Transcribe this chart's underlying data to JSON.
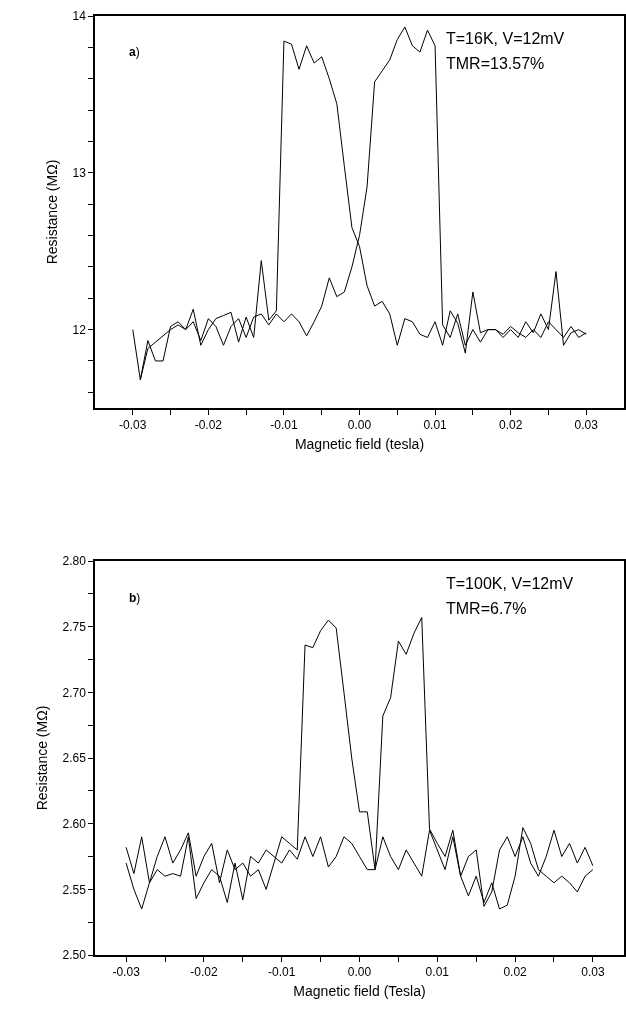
{
  "chart_data": [
    {
      "type": "line",
      "xlabel": "Magnetic field (tesla)",
      "ylabel": "Resistance (MΩ)",
      "annotations": [
        "a)",
        "T=16K, V=12mV",
        "TMR=13.57%"
      ],
      "xlim": [
        -0.035,
        0.035
      ],
      "ylim": [
        11.5,
        14
      ],
      "xticks": [
        -0.03,
        {
          "value": -0.025,
          "label": null
        },
        -0.02,
        {
          "value": -0.015,
          "label": null
        },
        -0.01,
        {
          "value": -0.005,
          "label": null
        },
        {
          "value": 0,
          "label": "0.00"
        },
        {
          "value": 0.005,
          "label": null
        },
        0.01,
        {
          "value": 0.015,
          "label": null
        },
        0.02,
        {
          "value": 0.025,
          "label": null
        },
        0.03
      ],
      "yticks": [
        {
          "value": 11.6,
          "label": null
        },
        {
          "value": 11.8,
          "label": null
        },
        12,
        {
          "value": 12.2,
          "label": null
        },
        {
          "value": 12.4,
          "label": null
        },
        {
          "value": 12.6,
          "label": null
        },
        {
          "value": 12.8,
          "label": null
        },
        13,
        {
          "value": 13.2,
          "label": null
        },
        {
          "value": 13.4,
          "label": null
        },
        {
          "value": 13.6,
          "label": null
        },
        {
          "value": 13.8,
          "label": null
        },
        14
      ],
      "x": [
        -0.03,
        -0.029,
        -0.028,
        -0.027,
        -0.026,
        -0.025,
        -0.024,
        -0.023,
        -0.022,
        -0.021,
        -0.02,
        -0.019,
        -0.018,
        -0.017,
        -0.016,
        -0.015,
        -0.014,
        -0.013,
        -0.012,
        -0.011,
        -0.01,
        -0.009,
        -0.008,
        -0.007,
        -0.006,
        -0.005,
        -0.004,
        -0.003,
        -0.002,
        -0.001,
        0.0,
        0.001,
        0.002,
        0.003,
        0.004,
        0.005,
        0.006,
        0.007,
        0.008,
        0.009,
        0.01,
        0.011,
        0.012,
        0.013,
        0.014,
        0.015,
        0.016,
        0.017,
        0.018,
        0.019,
        0.02,
        0.021,
        0.022,
        0.023,
        0.024,
        0.025,
        0.026,
        0.027,
        0.028,
        0.029,
        0.03
      ],
      "marker": "none",
      "line_style": "solid",
      "series": [
        {
          "color": "#000000",
          "values": [
            12.0,
            11.68,
            11.93,
            11.8,
            11.8,
            12.02,
            12.05,
            12.0,
            12.13,
            11.9,
            12.0,
            12.07,
            12.09,
            12.11,
            11.92,
            12.08,
            11.95,
            12.44,
            12.06,
            12.12,
            13.84,
            13.82,
            13.66,
            13.81,
            13.7,
            13.74,
            13.6,
            13.44,
            13.04,
            12.65,
            12.53,
            12.28,
            12.15,
            12.18,
            12.1,
            11.9,
            12.07,
            12.05,
            11.97,
            11.95,
            12.05,
            11.9,
            12.12,
            12.04,
            11.85,
            12.24,
            11.98,
            12.0,
            12.0,
            11.95,
            12.0,
            11.95,
            12.05,
            11.98,
            12.1,
            12.0,
            12.37,
            11.9,
            11.98,
            12.0,
            11.97
          ]
        },
        {
          "color": "#000000",
          "values": [
            null,
            11.68,
            11.88,
            11.92,
            11.96,
            12.0,
            12.03,
            12.0,
            12.05,
            11.93,
            12.07,
            12.02,
            11.9,
            12.02,
            12.07,
            11.95,
            12.08,
            12.1,
            12.03,
            12.1,
            12.05,
            12.1,
            12.05,
            11.96,
            12.05,
            12.15,
            12.33,
            12.21,
            12.24,
            12.4,
            12.6,
            12.91,
            13.58,
            13.65,
            13.72,
            13.85,
            13.93,
            13.81,
            13.77,
            13.91,
            13.81,
            12.03,
            11.95,
            12.1,
            11.9,
            12.0,
            11.92,
            12.0,
            12.0,
            11.97,
            12.02,
            11.98,
            11.95,
            12.0,
            11.95,
            12.05,
            12.0,
            11.95,
            12.02,
            11.95,
            11.98
          ]
        }
      ]
    },
    {
      "type": "line",
      "xlabel": "Magnetic field (Tesla)",
      "ylabel": "Resistance (MΩ)",
      "annotations": [
        "b)",
        "T=100K, V=12mV",
        "TMR=6.7%"
      ],
      "xlim": [
        -0.034,
        0.034
      ],
      "ylim": [
        2.5,
        2.8
      ],
      "xticks": [
        -0.03,
        {
          "value": -0.025,
          "label": null
        },
        -0.02,
        {
          "value": -0.015,
          "label": null
        },
        -0.01,
        {
          "value": -0.005,
          "label": null
        },
        {
          "value": 0,
          "label": "0.00"
        },
        {
          "value": 0.005,
          "label": null
        },
        0.01,
        {
          "value": 0.015,
          "label": null
        },
        0.02,
        {
          "value": 0.025,
          "label": null
        },
        0.03
      ],
      "yticks": [
        {
          "value": 2.5,
          "label": "2.50"
        },
        {
          "value": 2.525,
          "label": null
        },
        {
          "value": 2.55,
          "label": "2.55"
        },
        {
          "value": 2.575,
          "label": null
        },
        {
          "value": 2.6,
          "label": "2.60"
        },
        {
          "value": 2.625,
          "label": null
        },
        {
          "value": 2.65,
          "label": "2.65"
        },
        {
          "value": 2.675,
          "label": null
        },
        {
          "value": 2.7,
          "label": "2.70"
        },
        {
          "value": 2.725,
          "label": null
        },
        {
          "value": 2.75,
          "label": "2.75"
        },
        {
          "value": 2.775,
          "label": null
        },
        {
          "value": 2.8,
          "label": "2.80"
        }
      ],
      "x": [
        -0.03,
        -0.029,
        -0.028,
        -0.027,
        -0.026,
        -0.025,
        -0.024,
        -0.023,
        -0.022,
        -0.021,
        -0.02,
        -0.019,
        -0.018,
        -0.017,
        -0.016,
        -0.015,
        -0.014,
        -0.013,
        -0.012,
        -0.011,
        -0.01,
        -0.009,
        -0.008,
        -0.007,
        -0.006,
        -0.005,
        -0.004,
        -0.003,
        -0.002,
        -0.001,
        0.0,
        0.001,
        0.002,
        0.003,
        0.004,
        0.005,
        0.006,
        0.007,
        0.008,
        0.009,
        0.01,
        0.011,
        0.012,
        0.013,
        0.014,
        0.015,
        0.016,
        0.017,
        0.018,
        0.019,
        0.02,
        0.021,
        0.022,
        0.023,
        0.024,
        0.025,
        0.026,
        0.027,
        0.028,
        0.029,
        0.03
      ],
      "marker": "none",
      "line_style": "solid",
      "series": [
        {
          "color": "#000000",
          "values": [
            2.582,
            2.562,
            2.59,
            2.555,
            2.575,
            2.59,
            2.57,
            2.58,
            2.593,
            2.56,
            2.575,
            2.585,
            2.555,
            2.58,
            2.565,
            2.57,
            2.56,
            2.565,
            2.55,
            2.57,
            2.59,
            2.585,
            2.58,
            2.736,
            2.734,
            2.747,
            2.755,
            2.749,
            2.7,
            2.65,
            2.609,
            2.609,
            2.565,
            2.59,
            2.575,
            2.565,
            2.58,
            2.57,
            2.56,
            2.595,
            2.58,
            2.565,
            2.59,
            2.56,
            2.575,
            2.58,
            2.537,
            2.548,
            2.58,
            2.59,
            2.575,
            2.59,
            2.57,
            2.56,
            2.575,
            2.595,
            2.575,
            2.585,
            2.57,
            2.582,
            2.568
          ]
        },
        {
          "color": "#000000",
          "values": [
            2.57,
            2.55,
            2.535,
            2.555,
            2.565,
            2.56,
            2.562,
            2.56,
            2.59,
            2.543,
            2.555,
            2.565,
            2.56,
            2.54,
            2.57,
            2.542,
            2.575,
            2.57,
            2.58,
            2.575,
            2.57,
            2.58,
            2.573,
            2.59,
            2.575,
            2.59,
            2.567,
            2.575,
            2.59,
            2.585,
            2.575,
            2.565,
            2.565,
            2.682,
            2.696,
            2.739,
            2.729,
            2.745,
            2.757,
            2.596,
            2.585,
            2.575,
            2.595,
            2.56,
            2.545,
            2.56,
            2.54,
            2.555,
            2.535,
            2.538,
            2.56,
            2.597,
            2.585,
            2.565,
            2.56,
            2.555,
            2.56,
            2.555,
            2.548,
            2.56,
            2.565
          ]
        }
      ]
    }
  ]
}
